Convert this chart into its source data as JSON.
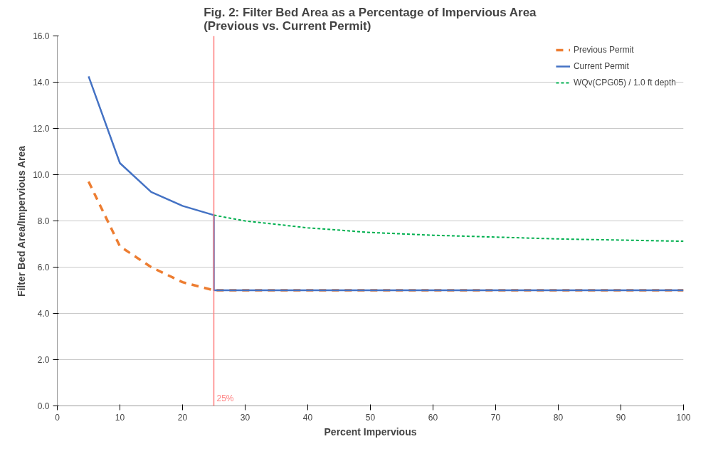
{
  "chart_data": {
    "type": "line",
    "title": "Fig. 2: Filter Bed Area as a Percentage of Impervious Area\n(Previous vs. Current Permit)",
    "xlabel": "Percent Impervious",
    "ylabel": "Filter Bed Area/Impervious Area",
    "series": [
      {
        "name": "Previous Permit",
        "color": "#ed7d31",
        "line_style": "dashed",
        "x": [
          5,
          10,
          15,
          20,
          25,
          100
        ],
        "values": [
          9.7,
          6.9,
          6.0,
          5.35,
          5.0,
          5.0
        ]
      },
      {
        "name": "Current Permit",
        "color": "#4472c4",
        "line_style": "solid",
        "x": [
          5,
          10,
          15,
          20,
          25,
          25,
          100
        ],
        "values": [
          14.25,
          10.5,
          9.25,
          8.65,
          8.25,
          5.0,
          5.0
        ]
      },
      {
        "name": "WQv(CPG05) / 1.0 ft depth",
        "color": "#00b050",
        "line_style": "dotted",
        "x": [
          25,
          30,
          40,
          50,
          60,
          70,
          80,
          90,
          100
        ],
        "values": [
          8.25,
          8.0,
          7.7,
          7.5,
          7.38,
          7.3,
          7.22,
          7.17,
          7.12
        ]
      }
    ],
    "xlim": [
      0,
      100
    ],
    "xticks": [
      0,
      10,
      20,
      30,
      40,
      50,
      60,
      70,
      80,
      90,
      100
    ],
    "ylim": [
      0,
      16
    ],
    "yticks": [
      {
        "value": 0,
        "label": "0.0"
      },
      {
        "value": 2,
        "label": "2.0"
      },
      {
        "value": 4,
        "label": "4.0"
      },
      {
        "value": 6,
        "label": "6.0"
      },
      {
        "value": 8,
        "label": "8.0"
      },
      {
        "value": 10,
        "label": "10.0"
      },
      {
        "value": 12,
        "label": "12.0"
      },
      {
        "value": 14,
        "label": "14.0"
      },
      {
        "value": 16,
        "label": "16.0"
      }
    ],
    "ref_lines": [
      {
        "axis": "x",
        "value": 25,
        "label": "25%",
        "color": "#ff7f7f"
      }
    ],
    "grid": "y",
    "legend": "top right",
    "marker": "none"
  }
}
